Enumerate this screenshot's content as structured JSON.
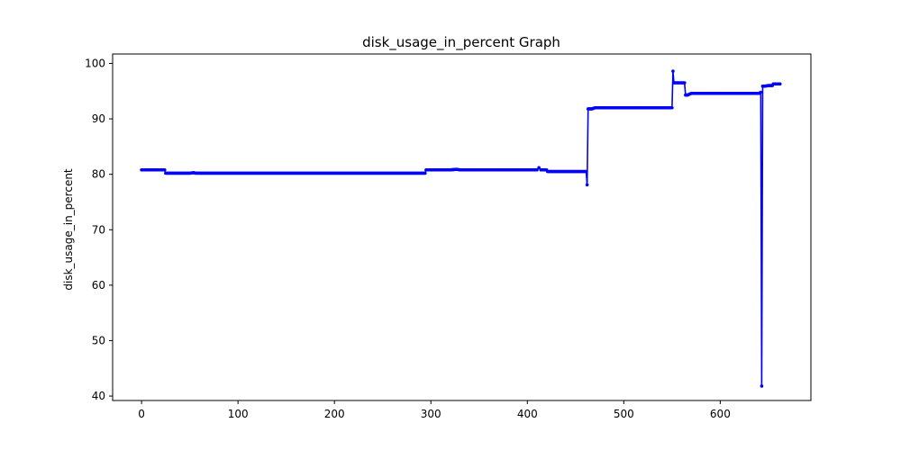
{
  "chart_data": {
    "type": "line",
    "title": "disk_usage_in_percent Graph",
    "xlabel": "",
    "ylabel": "disk_usage_in_percent",
    "xlim": [
      -30,
      694
    ],
    "ylim": [
      39.2,
      101.7
    ],
    "xticks": [
      0,
      100,
      200,
      300,
      400,
      500,
      600
    ],
    "yticks": [
      40,
      50,
      60,
      70,
      80,
      90,
      100
    ],
    "grid": false,
    "legend": "none",
    "color": "#0000ff",
    "series": [
      {
        "marker": "dot",
        "x": [
          0,
          5,
          10,
          15,
          20,
          24,
          25,
          26,
          30,
          40,
          50,
          54,
          56,
          60,
          100,
          150,
          200,
          250,
          294,
          295,
          300,
          310,
          320,
          327,
          330,
          350,
          380,
          410,
          412,
          414,
          420,
          421,
          430,
          450,
          461,
          462,
          463,
          465,
          467,
          470,
          480,
          500,
          520,
          540,
          550,
          551,
          552,
          553,
          555,
          560,
          563,
          564,
          566,
          570,
          580,
          600,
          620,
          640,
          641,
          642,
          643,
          644,
          646,
          650,
          654,
          655,
          660,
          662
        ],
        "y": [
          80.8,
          80.8,
          80.8,
          80.8,
          80.8,
          80.8,
          80.2,
          80.2,
          80.2,
          80.2,
          80.2,
          80.3,
          80.2,
          80.2,
          80.2,
          80.2,
          80.2,
          80.2,
          80.2,
          80.8,
          80.8,
          80.8,
          80.8,
          80.9,
          80.8,
          80.8,
          80.8,
          80.8,
          81.2,
          80.8,
          80.8,
          80.5,
          80.5,
          80.5,
          80.5,
          78.1,
          91.8,
          91.8,
          91.8,
          92.0,
          92.0,
          92.0,
          92.0,
          92.0,
          92.0,
          98.6,
          96.5,
          96.5,
          96.5,
          96.5,
          96.5,
          94.3,
          94.3,
          94.6,
          94.6,
          94.6,
          94.6,
          94.6,
          94.7,
          94.8,
          41.8,
          95.9,
          95.9,
          96.0,
          96.0,
          96.3,
          96.3,
          96.3
        ]
      }
    ]
  }
}
